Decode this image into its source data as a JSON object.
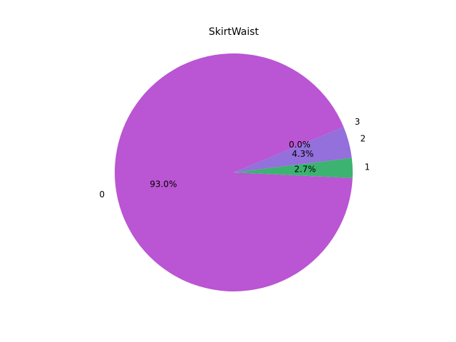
{
  "chart_data": {
    "type": "pie",
    "title": "SkirtWaist",
    "categories": [
      "0",
      "1",
      "2",
      "3"
    ],
    "values": [
      93.0,
      2.7,
      4.3,
      0.0
    ],
    "value_labels": [
      "93.0%",
      "2.7%",
      "4.3%",
      "0.0%"
    ],
    "colors": [
      "#ba55d3",
      "#3cb371",
      "#9370db",
      "#2e8b57"
    ],
    "start_angle_deg": 22.5,
    "direction": "counterclockwise"
  }
}
